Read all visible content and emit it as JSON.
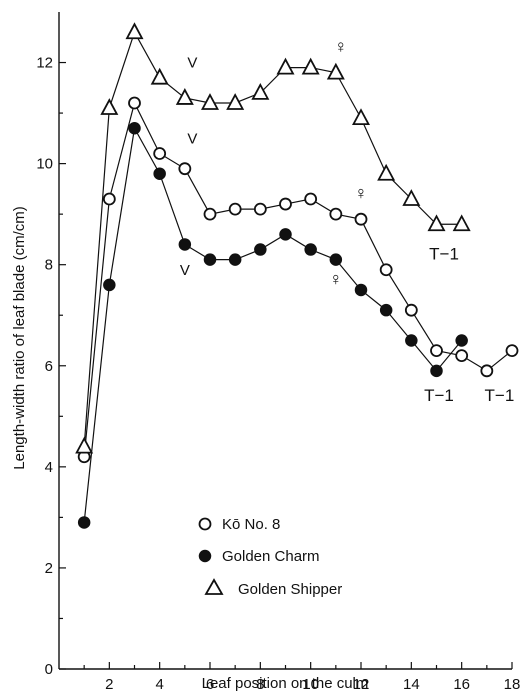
{
  "chart_data": {
    "type": "line",
    "title": "",
    "xlabel": "Leaf position on the culm",
    "ylabel": "Length-width ratio of leaf blade (cm/cm)",
    "xlim": [
      0,
      18
    ],
    "ylim": [
      0,
      13
    ],
    "xticks": [
      2,
      4,
      6,
      8,
      10,
      12,
      14,
      16,
      18
    ],
    "yticks": [
      0,
      2,
      4,
      6,
      8,
      10,
      12
    ],
    "grid": false,
    "legend_position": "bottom-center",
    "series": [
      {
        "name": "Kō No. 8",
        "marker": "open-circle",
        "x": [
          1,
          2,
          3,
          4,
          5,
          6,
          7,
          8,
          9,
          10,
          11,
          12,
          13,
          14,
          15,
          16,
          17,
          18
        ],
        "y": [
          4.2,
          9.3,
          11.2,
          10.2,
          9.9,
          9.0,
          9.1,
          9.1,
          9.2,
          9.3,
          9.0,
          8.9,
          7.9,
          7.1,
          6.3,
          6.2,
          5.9,
          6.3
        ]
      },
      {
        "name": "Golden Charm",
        "marker": "filled-circle",
        "x": [
          1,
          2,
          3,
          4,
          5,
          6,
          7,
          8,
          9,
          10,
          11,
          12,
          13,
          14,
          15,
          16
        ],
        "y": [
          2.9,
          7.6,
          10.7,
          9.8,
          8.4,
          8.1,
          8.1,
          8.3,
          8.6,
          8.3,
          8.1,
          7.5,
          7.1,
          6.5,
          5.9,
          6.5
        ]
      },
      {
        "name": "Golden Shipper",
        "marker": "open-triangle",
        "x": [
          1,
          2,
          3,
          4,
          5,
          6,
          7,
          8,
          9,
          10,
          11,
          12,
          13,
          14,
          15,
          16
        ],
        "y": [
          4.4,
          11.1,
          12.6,
          11.7,
          11.3,
          11.2,
          11.2,
          11.4,
          11.9,
          11.9,
          11.8,
          10.9,
          9.8,
          9.3,
          8.8,
          8.8
        ]
      }
    ],
    "annotations": [
      {
        "text": "V",
        "x": 5.3,
        "y": 11.9
      },
      {
        "text": "V",
        "x": 5.3,
        "y": 10.4
      },
      {
        "text": "V",
        "x": 5.0,
        "y": 7.8
      },
      {
        "text": "♀",
        "x": 11.2,
        "y": 12.2
      },
      {
        "text": "♀",
        "x": 12.0,
        "y": 9.3
      },
      {
        "text": "♀",
        "x": 11.0,
        "y": 7.6
      },
      {
        "text": "T−1",
        "x": 15.3,
        "y": 8.1
      },
      {
        "text": "T−1",
        "x": 15.1,
        "y": 5.3
      },
      {
        "text": "T−1",
        "x": 17.5,
        "y": 5.3
      }
    ]
  }
}
